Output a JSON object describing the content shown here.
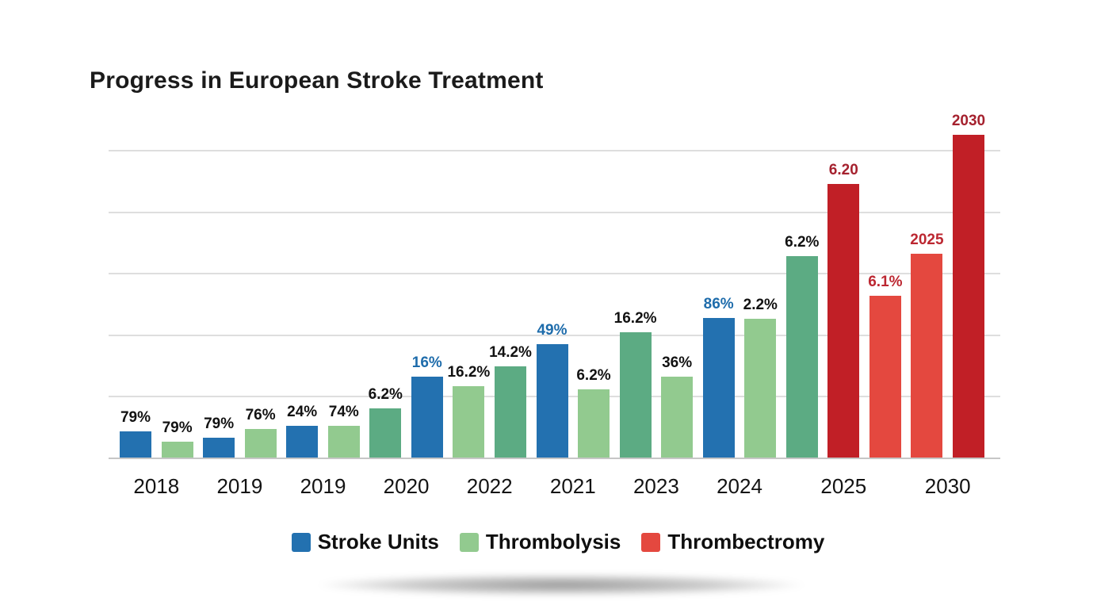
{
  "title": "Progress in European Stroke Treatment",
  "palette": {
    "blue": "#2371b0",
    "green_light": "#92ca8f",
    "green_dark": "#5cab83",
    "red_dark": "#c11f26",
    "red_light": "#e4483f",
    "label_black": "#121212",
    "label_blue": "#1e6cab",
    "label_red_dark": "#a5212e",
    "label_red_light": "#bc2731",
    "gridline": "#dedede",
    "axis_line": "#c6c6c6",
    "title_color": "#1b1b1b",
    "year_label_color": "#131313",
    "legend_text_color": "#0f0f0f"
  },
  "legend": [
    {
      "label": "Stroke Units",
      "color": "blue"
    },
    {
      "label": "Thrombolysis",
      "color": "green_light"
    },
    {
      "label": "Thrombectromy",
      "color": "red_light"
    }
  ],
  "chart_data": {
    "type": "bar",
    "title": "Progress in European Stroke Treatment",
    "legend_position": "bottom",
    "series_names": [
      "Stroke Units",
      "Thrombolysis",
      "Thrombectromy"
    ],
    "y_axis": {
      "labels_visible": false,
      "gridline_count": 5
    },
    "x_axis_labels": [
      "2018",
      "2019",
      "2019",
      "2020",
      "2022",
      "2021",
      "2023",
      "2024",
      "2025",
      "2030"
    ],
    "groups": [
      {
        "label": "2018",
        "bars": [
          0,
          1
        ]
      },
      {
        "label": "2019",
        "bars": [
          2,
          3
        ]
      },
      {
        "label": "2019",
        "bars": [
          4,
          5
        ]
      },
      {
        "label": "2020",
        "bars": [
          6,
          7
        ]
      },
      {
        "label": "2022",
        "bars": [
          8,
          9
        ]
      },
      {
        "label": "2021",
        "bars": [
          10,
          11
        ]
      },
      {
        "label": "2023",
        "bars": [
          12,
          13
        ]
      },
      {
        "label": "2024",
        "bars": [
          14,
          15
        ]
      },
      {
        "label": "2025",
        "bars": [
          16,
          17,
          18
        ]
      },
      {
        "label": "2030",
        "bars": [
          19,
          20
        ]
      }
    ],
    "bars": [
      {
        "series": "Stroke Units",
        "color": "blue",
        "label": "79%",
        "label_color": "label_black",
        "height_frac": 0.081
      },
      {
        "series": "Thrombolysis",
        "color": "green_light",
        "label": "79%",
        "label_color": "label_black",
        "height_frac": 0.049
      },
      {
        "series": "Stroke Units",
        "color": "blue",
        "label": "79%",
        "label_color": "label_black",
        "height_frac": 0.061
      },
      {
        "series": "Thrombolysis",
        "color": "green_light",
        "label": "76%",
        "label_color": "label_black",
        "height_frac": 0.088
      },
      {
        "series": "Stroke Units",
        "color": "blue",
        "label": "24%",
        "label_color": "label_black",
        "height_frac": 0.098
      },
      {
        "series": "Thrombolysis",
        "color": "green_light",
        "label": "74%",
        "label_color": "label_black",
        "height_frac": 0.098
      },
      {
        "series": "Thrombolysis",
        "color": "green_dark",
        "label": "6.2%",
        "label_color": "label_black",
        "height_frac": 0.152
      },
      {
        "series": "Stroke Units",
        "color": "blue",
        "label": "16%",
        "label_color": "label_blue",
        "height_frac": 0.251
      },
      {
        "series": "Thrombolysis",
        "color": "green_light",
        "label": "16.2%",
        "label_color": "label_black",
        "height_frac": 0.221
      },
      {
        "series": "Thrombolysis",
        "color": "green_dark",
        "label": "14.2%",
        "label_color": "label_black",
        "height_frac": 0.283
      },
      {
        "series": "Stroke Units",
        "color": "blue",
        "label": "49%",
        "label_color": "label_blue",
        "height_frac": 0.351
      },
      {
        "series": "Thrombolysis",
        "color": "green_light",
        "label": "6.2%",
        "label_color": "label_black",
        "height_frac": 0.211
      },
      {
        "series": "Thrombolysis",
        "color": "green_dark",
        "label": "16.2%",
        "label_color": "label_black",
        "height_frac": 0.388
      },
      {
        "series": "Thrombolysis",
        "color": "green_light",
        "label": "36%",
        "label_color": "label_black",
        "height_frac": 0.251
      },
      {
        "series": "Stroke Units",
        "color": "blue",
        "label": "86%",
        "label_color": "label_blue",
        "height_frac": 0.432
      },
      {
        "series": "Thrombolysis",
        "color": "green_light",
        "label": "2.2%",
        "label_color": "label_black",
        "height_frac": 0.43
      },
      {
        "series": "Thrombolysis",
        "color": "green_dark",
        "label": "6.2%",
        "label_color": "label_black",
        "height_frac": 0.624
      },
      {
        "series": "Thrombectromy",
        "color": "red_dark",
        "label": "6.20",
        "label_color": "label_red_dark",
        "height_frac": 0.848
      },
      {
        "series": "Thrombectromy",
        "color": "red_light",
        "label": "6.1%",
        "label_color": "label_red_light",
        "height_frac": 0.501
      },
      {
        "series": "Thrombectromy",
        "color": "red_light",
        "label": "2025",
        "label_color": "label_red_light",
        "height_frac": 0.631
      },
      {
        "series": "Thrombectromy",
        "color": "red_dark",
        "label": "2030",
        "label_color": "label_red_dark",
        "height_frac": 1.0
      }
    ]
  }
}
